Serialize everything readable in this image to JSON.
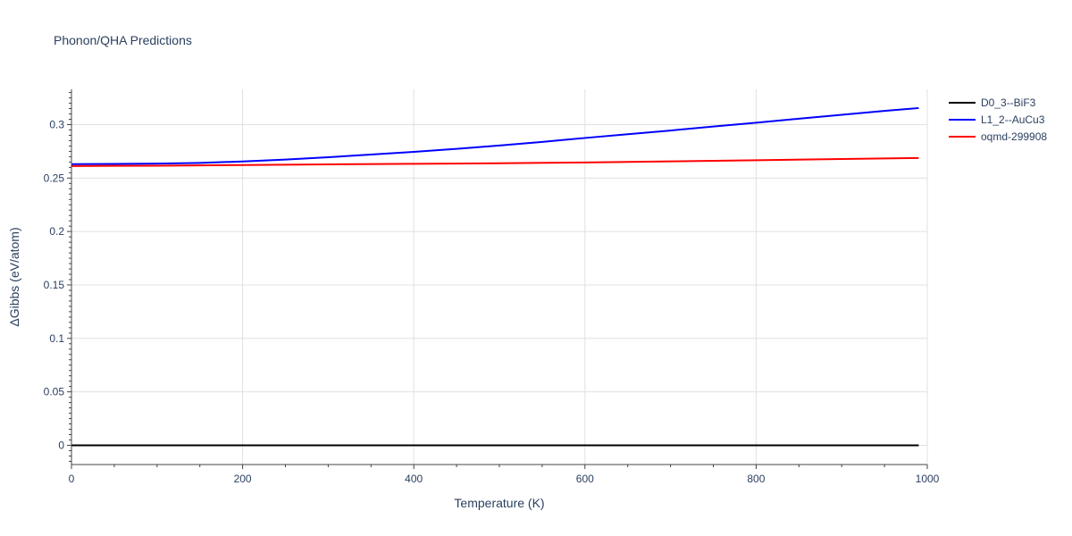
{
  "chart_data": {
    "type": "line",
    "title": "Phonon/QHA Predictions",
    "xlabel": "Temperature (K)",
    "ylabel": "ΔGibbs (eV/atom)",
    "xlim": [
      0,
      1000
    ],
    "ylim": [
      -0.018,
      0.333
    ],
    "xticks": [
      0,
      200,
      400,
      600,
      800,
      1000
    ],
    "xtick_labels": [
      "0",
      "200",
      "400",
      "600",
      "800",
      "1000"
    ],
    "yticks": [
      0,
      0.05,
      0.1,
      0.15,
      0.2,
      0.25,
      0.3
    ],
    "ytick_labels": [
      "0",
      "0.05",
      "0.1",
      "0.15",
      "0.2",
      "0.25",
      "0.3"
    ],
    "grid": true,
    "legend_position": "top-right",
    "series": [
      {
        "name": "D0_3--BiF3",
        "color": "#000000",
        "x": [
          0,
          100,
          200,
          300,
          400,
          500,
          600,
          700,
          800,
          900,
          990
        ],
        "y": [
          0,
          0,
          0,
          0,
          0,
          0,
          0,
          0,
          0,
          0,
          0
        ]
      },
      {
        "name": "L1_2--AuCu3",
        "color": "#0000ff",
        "x": [
          0,
          50,
          100,
          150,
          200,
          250,
          300,
          350,
          400,
          450,
          500,
          550,
          600,
          650,
          700,
          750,
          800,
          850,
          900,
          950,
          990
        ],
        "y": [
          0.263,
          0.2632,
          0.2635,
          0.2642,
          0.2655,
          0.2673,
          0.2695,
          0.272,
          0.2745,
          0.2773,
          0.2805,
          0.2838,
          0.2875,
          0.291,
          0.2945,
          0.2982,
          0.3018,
          0.3055,
          0.3092,
          0.3128,
          0.3155
        ]
      },
      {
        "name": "oqmd-299908",
        "color": "#ff0000",
        "x": [
          0,
          100,
          200,
          300,
          400,
          500,
          600,
          700,
          800,
          900,
          990
        ],
        "y": [
          0.2612,
          0.2616,
          0.2622,
          0.2628,
          0.2633,
          0.2638,
          0.2646,
          0.2656,
          0.2667,
          0.2678,
          0.2688
        ]
      }
    ]
  }
}
